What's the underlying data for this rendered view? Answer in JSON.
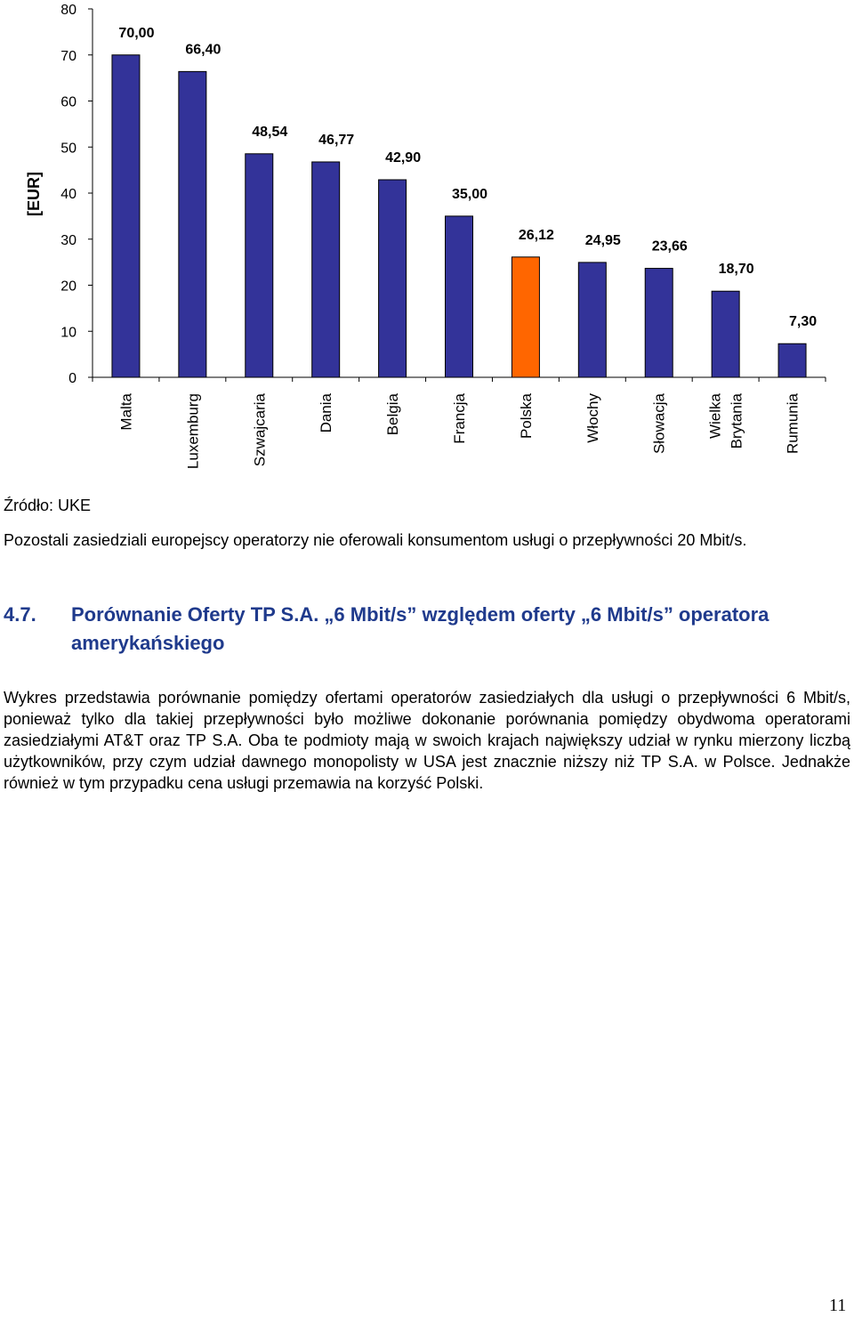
{
  "chart_data": {
    "type": "bar",
    "ylabel": "[EUR]",
    "ylim": [
      0,
      80
    ],
    "yticks": [
      "0",
      "10",
      "20",
      "30",
      "40",
      "50",
      "60",
      "70",
      "80"
    ],
    "categories": [
      [
        "Malta"
      ],
      [
        "Luxemburg"
      ],
      [
        "Szwajcaria"
      ],
      [
        "Dania"
      ],
      [
        "Belgia"
      ],
      [
        "Francja"
      ],
      [
        "Polska"
      ],
      [
        "Włochy"
      ],
      [
        "Słowacja"
      ],
      [
        "Wielka",
        "Brytania"
      ],
      [
        "Rumunia"
      ]
    ],
    "values": [
      70.0,
      66.4,
      48.54,
      46.77,
      42.9,
      35.0,
      26.12,
      24.95,
      23.66,
      18.7,
      7.3
    ],
    "value_labels": [
      "70,00",
      "66,40",
      "48,54",
      "46,77",
      "42,90",
      "35,00",
      "26,12",
      "24,95",
      "23,66",
      "18,70",
      "7,30"
    ],
    "colors": {
      "default": "#333399",
      "highlight": "#FF6600",
      "highlight_category": "Polska"
    },
    "grid": false,
    "legend": "none"
  },
  "source": "Źródło: UKE",
  "paragraph1": "Pozostali zasiedziali europejscy operatorzy nie oferowali konsumentom usługi o przepływności 20 Mbit/s.",
  "section": {
    "number": "4.7.",
    "title": "Porównanie Oferty TP S.A. „6 Mbit/s” względem oferty „6 Mbit/s” operatora amerykańskiego"
  },
  "paragraph2": "Wykres przedstawia porównanie pomiędzy ofertami operatorów zasiedziałych dla usługi o przepływności 6 Mbit/s, ponieważ tylko dla takiej przepływności było możliwe dokonanie porównania pomiędzy obydwoma operatorami zasiedziałymi AT&T oraz TP S.A. Oba te podmioty mają w swoich krajach największy udział w rynku mierzony liczbą użytkowników, przy czym udział dawnego monopolisty w USA jest znacznie niższy niż TP S.A. w Polsce. Jednakże również w tym przypadku cena usługi przemawia na korzyść Polski.",
  "page_number": "11"
}
